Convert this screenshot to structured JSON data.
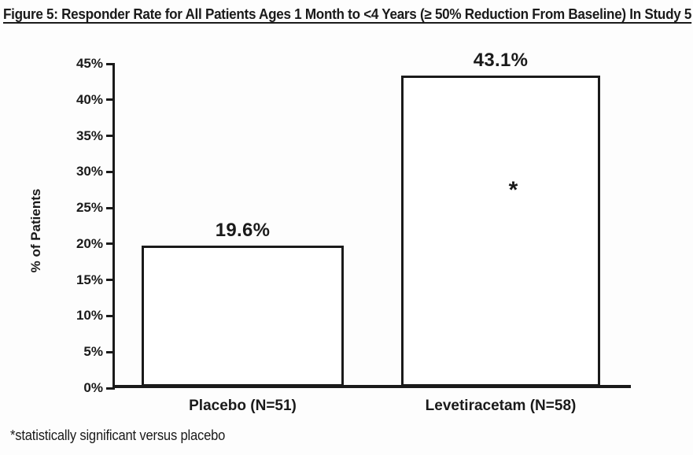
{
  "figure": {
    "title": "Figure 5: Responder Rate for All Patients Ages 1 Month to <4 Years (≥ 50% Reduction From Baseline) In Study 5",
    "footnote": "*statistically significant versus placebo"
  },
  "chart_data": {
    "type": "bar",
    "title": "Figure 5: Responder Rate for All Patients Ages 1 Month to <4 Years (≥ 50% Reduction From Baseline) In Study 5",
    "categories": [
      "Placebo (N=51)",
      "Levetiracetam (N=58)"
    ],
    "values": [
      19.6,
      43.1
    ],
    "bar_value_labels": [
      "19.6%",
      "43.1%"
    ],
    "xlabel": "",
    "ylabel": "% of Patients",
    "ylim": [
      0,
      45
    ],
    "ytick_step": 5,
    "ytick_labels": [
      "0%",
      "5%",
      "10%",
      "15%",
      "20%",
      "25%",
      "30%",
      "35%",
      "40%",
      "45%"
    ],
    "grid": false,
    "legend": "none",
    "annotations": [
      {
        "text": "*",
        "category": "Levetiracetam (N=58)",
        "y_value": 28,
        "placement": "inside-bar"
      }
    ],
    "colors": {
      "bar_fill": "#ffffff",
      "bar_border": "#1a1a1a",
      "axis": "#1a1a1a",
      "text": "#1a1a1a",
      "background": "#fdfdfd"
    }
  }
}
